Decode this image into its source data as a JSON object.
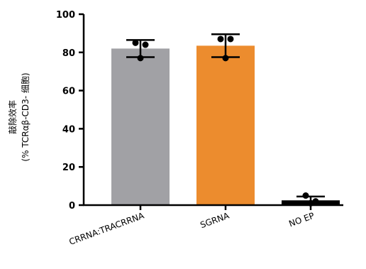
{
  "chart_data": {
    "type": "bar",
    "categories": [
      "CRRNA:TRACRRNA",
      "SGRNA",
      "NO EP"
    ],
    "values": [
      82,
      83.5,
      2.5
    ],
    "error_bars": [
      {
        "low": 77.5,
        "high": 86.5
      },
      {
        "low": 77.5,
        "high": 89.5
      },
      {
        "low": 0.5,
        "high": 4.5
      }
    ],
    "points": [
      [
        85,
        84,
        77
      ],
      [
        87,
        87,
        77
      ],
      [
        5,
        2,
        1
      ]
    ],
    "bar_colors": [
      "#a1a1a5",
      "#ec8c2e",
      "#000000"
    ],
    "ylabel_line1": "敲除效率",
    "ylabel_line2": "(% TCRαβ-CD3- 细胞)",
    "ylim": [
      0,
      100
    ],
    "yticks": [
      "0",
      "20",
      "40",
      "60",
      "80",
      "100"
    ]
  }
}
